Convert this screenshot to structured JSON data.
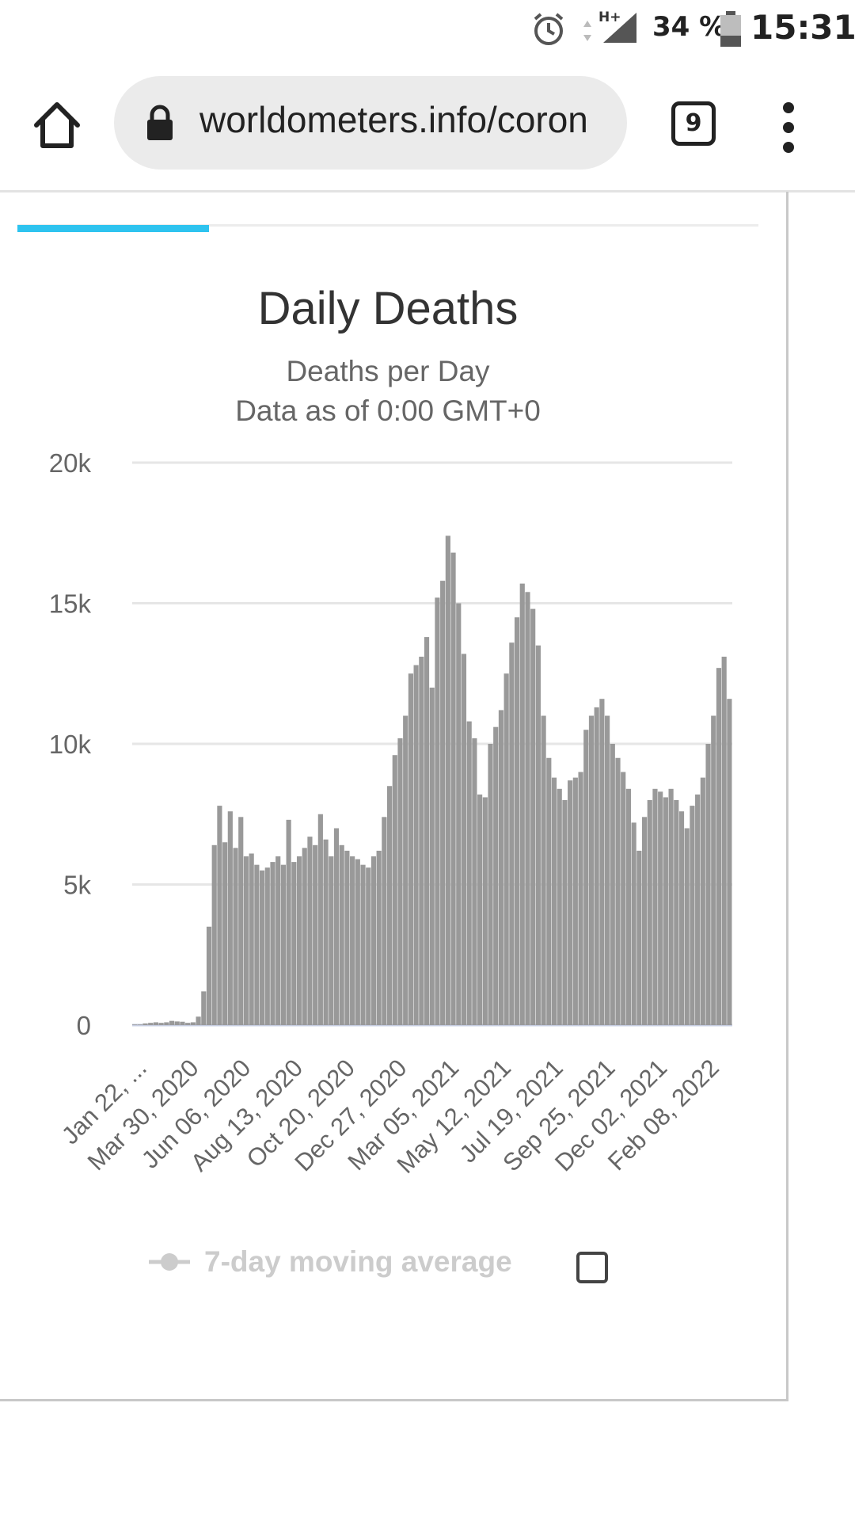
{
  "status_bar": {
    "network": "H+",
    "battery": "34 %",
    "time": "15:31",
    "icons": [
      "alarm-icon",
      "signal-icon",
      "battery-icon"
    ]
  },
  "browser": {
    "url": "worldometers.info/coron",
    "tab_count": "9",
    "icons": [
      "home-icon",
      "lock-icon",
      "overflow-menu-icon"
    ]
  },
  "chart_data": {
    "type": "bar",
    "title": "Daily Deaths",
    "subtitle": "Deaths per Day",
    "note": "Data as of 0:00 GMT+0",
    "xlabel": "",
    "ylabel": "",
    "ylim": [
      0,
      20000
    ],
    "yticks": [
      "0",
      "5k",
      "10k",
      "15k",
      "20k"
    ],
    "ytick_values": [
      0,
      5000,
      10000,
      15000,
      20000
    ],
    "xticks": [
      "Jan 22, ...",
      "Mar 30, 2020",
      "Jun 06, 2020",
      "Aug 13, 2020",
      "Oct 20, 2020",
      "Dec 27, 2020",
      "Mar 05, 2021",
      "May 12, 2021",
      "Jul 19, 2021",
      "Sep 25, 2021",
      "Dec 02, 2021",
      "Feb 08, 2022"
    ],
    "grid": true,
    "bar_color": "#999999",
    "x_start": "2020-01-22",
    "x_end": "2022-02-20",
    "x_step_days": 4,
    "values": [
      20,
      20,
      60,
      80,
      100,
      80,
      100,
      150,
      130,
      120,
      80,
      100,
      300,
      1200,
      3500,
      6400,
      7800,
      6500,
      7600,
      6300,
      7400,
      6000,
      6100,
      5700,
      5500,
      5600,
      5800,
      6000,
      5700,
      7300,
      5800,
      6000,
      6300,
      6700,
      6400,
      7500,
      6600,
      6000,
      7000,
      6400,
      6200,
      6000,
      5900,
      5700,
      5600,
      6000,
      6200,
      7400,
      8500,
      9600,
      10200,
      11000,
      12500,
      12800,
      13100,
      13800,
      12000,
      15200,
      15800,
      17400,
      16800,
      15000,
      13200,
      10800,
      10200,
      8200,
      8100,
      10000,
      10600,
      11200,
      12500,
      13600,
      14500,
      15700,
      15400,
      14800,
      13500,
      11000,
      9500,
      8800,
      8400,
      8000,
      8700,
      8800,
      9000,
      10500,
      11000,
      11300,
      11600,
      11000,
      10000,
      9500,
      9000,
      8400,
      7200,
      6200,
      7400,
      8000,
      8400,
      8300,
      8100,
      8400,
      8000,
      7600,
      7000,
      7800,
      8200,
      8800,
      10000,
      11000,
      12700,
      13100,
      11600
    ],
    "legend": [
      {
        "name": "7-day moving average",
        "color": "#cccccc",
        "position": "bottom"
      }
    ]
  }
}
